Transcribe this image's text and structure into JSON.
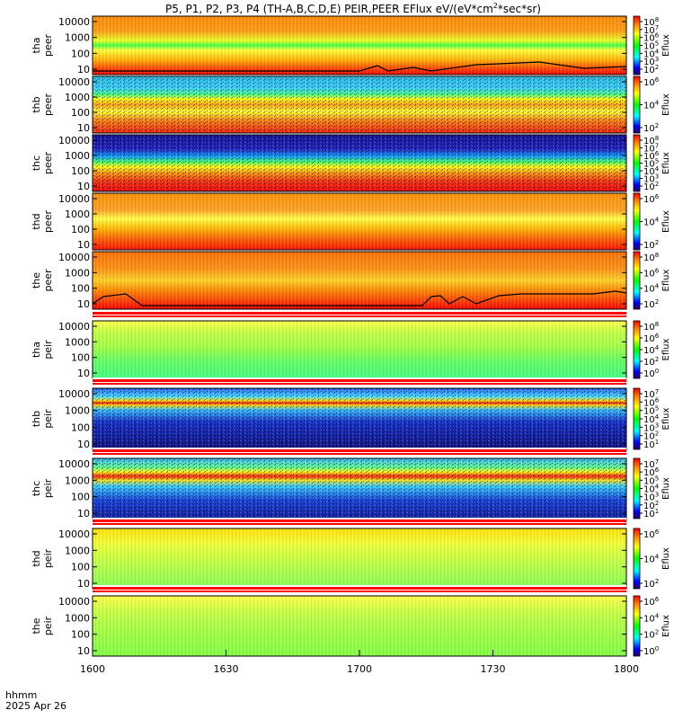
{
  "chart_data": {
    "type": "heatmap",
    "title_main": "P5, P1, P2, P3, P4 (TH-A,B,C,D,E) PEIR,PEER EFlux eV/(eV*cm",
    "title_sup": "2",
    "title_tail": "*sec*sr)",
    "colorbar_label": "Eflux",
    "colormap": [
      "#ffffff",
      "#ff0000",
      "#ff8c00",
      "#ffff00",
      "#00ff00",
      "#00ffff",
      "#0000ff",
      "#400080",
      "#000000"
    ],
    "y_ticks": [
      "10000",
      "1000",
      "100",
      "10"
    ],
    "x_ticks": [
      "1600",
      "1630",
      "1700",
      "1730",
      "1800"
    ],
    "x_range": [
      "1600",
      "1800"
    ],
    "y_scale": "log",
    "time_label": "hhmm",
    "date_label": "2025 Apr 26",
    "panels": [
      {
        "probe": "tha",
        "species": "peer",
        "cbar": [
          "10",
          "10",
          "10",
          "10",
          "10",
          "10",
          "10"
        ],
        "cbar_exp": [
          "8",
          "7",
          "6",
          "5",
          "4",
          "3",
          "2"
        ]
      },
      {
        "probe": "thb",
        "species": "peer",
        "cbar": [
          "10",
          "10",
          "10"
        ],
        "cbar_exp": [
          "6",
          "4",
          "2"
        ]
      },
      {
        "probe": "thc",
        "species": "peer",
        "cbar": [
          "10",
          "10",
          "10",
          "10",
          "10",
          "10",
          "10"
        ],
        "cbar_exp": [
          "8",
          "7",
          "6",
          "5",
          "4",
          "3",
          "2"
        ]
      },
      {
        "probe": "thd",
        "species": "peer",
        "cbar": [
          "10",
          "10",
          "10"
        ],
        "cbar_exp": [
          "6",
          "4",
          "2"
        ]
      },
      {
        "probe": "the",
        "species": "peer",
        "cbar": [
          "10",
          "10",
          "10",
          "10"
        ],
        "cbar_exp": [
          "8",
          "6",
          "4",
          "2"
        ]
      },
      {
        "probe": "tha",
        "species": "peir",
        "cbar": [
          "10",
          "10",
          "10",
          "10",
          "10"
        ],
        "cbar_exp": [
          "8",
          "6",
          "4",
          "2",
          "0"
        ]
      },
      {
        "probe": "thb",
        "species": "peir",
        "cbar": [
          "10",
          "10",
          "10",
          "10",
          "10",
          "10",
          "10"
        ],
        "cbar_exp": [
          "7",
          "6",
          "5",
          "4",
          "3",
          "2",
          "1"
        ]
      },
      {
        "probe": "thc",
        "species": "peir",
        "cbar": [
          "10",
          "10",
          "10",
          "10",
          "10",
          "10",
          "10"
        ],
        "cbar_exp": [
          "7",
          "6",
          "5",
          "4",
          "3",
          "2",
          "1"
        ]
      },
      {
        "probe": "thd",
        "species": "peir",
        "cbar": [
          "10",
          "10",
          "10"
        ],
        "cbar_exp": [
          "6",
          "4",
          "2"
        ]
      },
      {
        "probe": "the",
        "species": "peir",
        "cbar": [
          "10",
          "10",
          "10",
          "10"
        ],
        "cbar_exp": [
          "6",
          "4",
          "2",
          "0"
        ]
      }
    ]
  }
}
